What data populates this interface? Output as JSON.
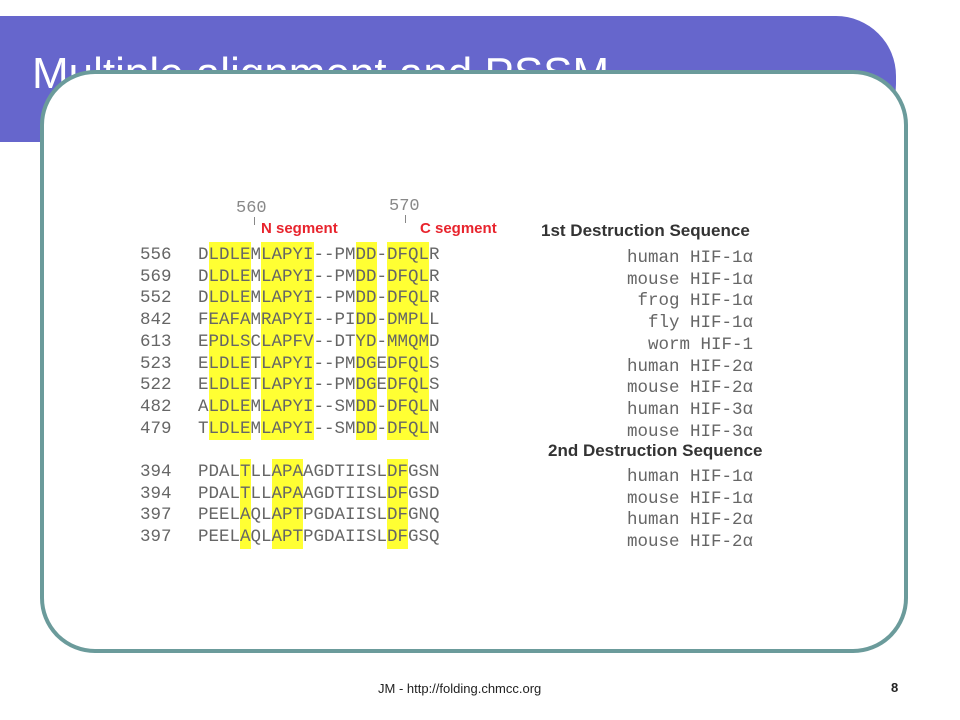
{
  "slide": {
    "title": "Multiple alignment and PSSM",
    "footer": "JM - http://folding.chmcc.org",
    "page_number": "8"
  },
  "figure": {
    "ticks": [
      "560",
      "570"
    ],
    "segment_labels": {
      "n": "N segment",
      "c": "C segment"
    },
    "group1_header": "1st Destruction Sequence",
    "group2_header": "2nd Destruction Sequence",
    "group1": [
      {
        "num": "556",
        "seq": "DLDLEMLAPYI--PMDD-DFQLR",
        "species": "human HIF-1α"
      },
      {
        "num": "569",
        "seq": "DLDLEMLAPYI--PMDD-DFQLR",
        "species": "mouse HIF-1α"
      },
      {
        "num": "552",
        "seq": "DLDLEMLAPYI--PMDD-DFQLR",
        "species": "frog HIF-1α"
      },
      {
        "num": "842",
        "seq": "FEAFAMRAPYI--PIDD-DMPLL",
        "species": "fly HIF-1α"
      },
      {
        "num": "613",
        "seq": "EPDLSCLAPFV--DTYD-MMQMD",
        "species": "worm HIF-1"
      },
      {
        "num": "523",
        "seq": "ELDLETLAPYI--PMDGEDFQLS",
        "species": "human HIF-2α"
      },
      {
        "num": "522",
        "seq": "ELDLETLAPYI--PMDGEDFQLS",
        "species": "mouse HIF-2α"
      },
      {
        "num": "482",
        "seq": "ALDLEMLAPYI--SMDD-DFQLN",
        "species": "human HIF-3α"
      },
      {
        "num": "479",
        "seq": "TLDLEMLAPYI--SMDD-DFQLN",
        "species": "mouse HIF-3α"
      }
    ],
    "group2": [
      {
        "num": "394",
        "seq": "PDALTLLAPAAGDTIISLDFGSN",
        "species": "human HIF-1α"
      },
      {
        "num": "394",
        "seq": "PDALTLLAPAAGDTIISLDFGSD",
        "species": "mouse HIF-1α"
      },
      {
        "num": "397",
        "seq": "PEELAQLAPTPGDAIISLDFGNQ",
        "species": "human HIF-2α"
      },
      {
        "num": "397",
        "seq": "PEELAQLAPTPGDAIISLDFGSQ",
        "species": "mouse HIF-2α"
      }
    ],
    "colors": {
      "highlight": "#ffff33",
      "segment_label": "#e8242d",
      "title_bar": "#6666cc",
      "frame": "#6b9b9b"
    }
  }
}
